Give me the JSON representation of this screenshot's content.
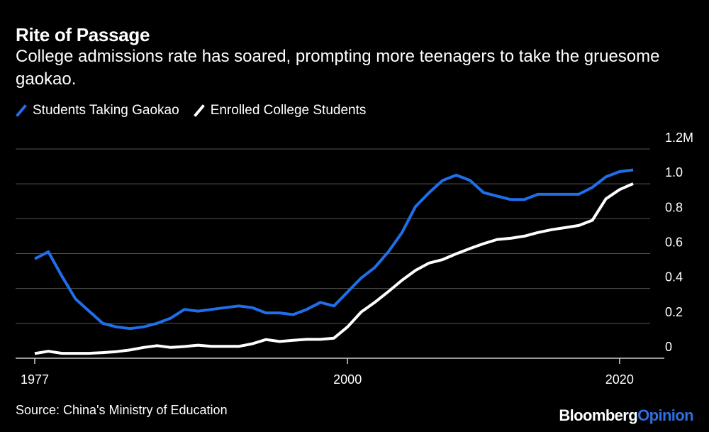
{
  "header": {
    "title": "Rite of Passage",
    "subtitle": "College admissions rate has soared, prompting more teenagers to take the gruesome gaokao."
  },
  "colors": {
    "series1": "#1f6fea",
    "series2": "#ffffff",
    "grid": "#555555",
    "axis": "#cccccc"
  },
  "footer": {
    "source": "Source: China's Ministry of Education",
    "brand_main": "Bloomberg",
    "brand_accent": "Opinion"
  },
  "chart_data": {
    "type": "line",
    "title": "Rite of Passage",
    "xlabel": "",
    "ylabel": "",
    "xlim": [
      1977,
      2021
    ],
    "ylim": [
      0,
      1.2
    ],
    "x_ticks": [
      1977,
      2000,
      2020
    ],
    "x_tick_labels": [
      "1977",
      "2000",
      "2020"
    ],
    "y_ticks": [
      0,
      0.2,
      0.4,
      0.6,
      0.8,
      1.0,
      1.2
    ],
    "y_tick_labels": [
      "0",
      "0.2",
      "0.4",
      "0.6",
      "0.8",
      "1.0",
      "1.2M"
    ],
    "legend_position": "top-left",
    "x": [
      1977,
      1978,
      1979,
      1980,
      1981,
      1982,
      1983,
      1984,
      1985,
      1986,
      1987,
      1988,
      1989,
      1990,
      1991,
      1992,
      1993,
      1994,
      1995,
      1996,
      1997,
      1998,
      1999,
      2000,
      2001,
      2002,
      2003,
      2004,
      2005,
      2006,
      2007,
      2008,
      2009,
      2010,
      2011,
      2012,
      2013,
      2014,
      2015,
      2016,
      2017,
      2018,
      2019,
      2020,
      2021
    ],
    "series": [
      {
        "name": "Students Taking Gaokao",
        "values": [
          0.57,
          0.61,
          0.47,
          0.34,
          0.27,
          0.2,
          0.18,
          0.17,
          0.18,
          0.2,
          0.23,
          0.28,
          0.27,
          0.28,
          0.29,
          0.3,
          0.29,
          0.26,
          0.26,
          0.25,
          0.28,
          0.32,
          0.3,
          0.38,
          0.46,
          0.52,
          0.61,
          0.72,
          0.87,
          0.95,
          1.02,
          1.05,
          1.02,
          0.95,
          0.93,
          0.91,
          0.91,
          0.94,
          0.94,
          0.94,
          0.94,
          0.98,
          1.04,
          1.07,
          1.08
        ]
      },
      {
        "name": "Enrolled College Students",
        "values": [
          0.027,
          0.04,
          0.028,
          0.028,
          0.028,
          0.032,
          0.038,
          0.047,
          0.062,
          0.072,
          0.062,
          0.067,
          0.075,
          0.068,
          0.068,
          0.068,
          0.083,
          0.107,
          0.096,
          0.103,
          0.108,
          0.108,
          0.115,
          0.18,
          0.265,
          0.32,
          0.382,
          0.447,
          0.504,
          0.546,
          0.566,
          0.599,
          0.629,
          0.657,
          0.681,
          0.688,
          0.7,
          0.721,
          0.737,
          0.749,
          0.761,
          0.791,
          0.914,
          0.967,
          1.001
        ]
      }
    ]
  }
}
